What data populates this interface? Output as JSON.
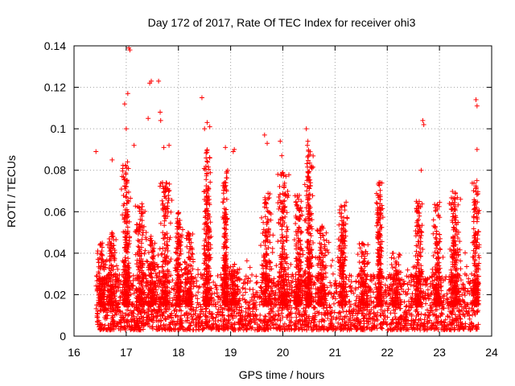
{
  "chart_data": {
    "type": "scatter",
    "title": "Day 172 of 2017, Rate Of TEC Index for receiver ohi3",
    "xlabel": "GPS time / hours",
    "ylabel": "ROTI / TECUs",
    "xlim": [
      16,
      24
    ],
    "ylim": [
      0,
      0.14
    ],
    "x_ticks": [
      16,
      17,
      18,
      19,
      20,
      21,
      22,
      23,
      24
    ],
    "x_tick_labels": [
      "16",
      "17",
      "18",
      "19",
      "20",
      "21",
      "22",
      "23",
      "24"
    ],
    "y_ticks": [
      0,
      0.02,
      0.04,
      0.06,
      0.08,
      0.1,
      0.12,
      0.14
    ],
    "y_tick_labels": [
      "0",
      "0.02",
      "0.04",
      "0.06",
      "0.08",
      "0.1",
      "0.12",
      "0.14"
    ],
    "grid": true,
    "marker": "+",
    "marker_color": "#ff0000",
    "x_data_range": [
      16.42,
      23.75
    ],
    "notable_points": [
      {
        "x": 16.42,
        "y": 0.089
      },
      {
        "x": 16.73,
        "y": 0.085
      },
      {
        "x": 16.97,
        "y": 0.112
      },
      {
        "x": 17.0,
        "y": 0.1
      },
      {
        "x": 17.03,
        "y": 0.117
      },
      {
        "x": 17.05,
        "y": 0.139
      },
      {
        "x": 17.07,
        "y": 0.138
      },
      {
        "x": 17.15,
        "y": 0.092
      },
      {
        "x": 17.42,
        "y": 0.105
      },
      {
        "x": 17.45,
        "y": 0.122
      },
      {
        "x": 17.48,
        "y": 0.123
      },
      {
        "x": 17.62,
        "y": 0.123
      },
      {
        "x": 17.65,
        "y": 0.108
      },
      {
        "x": 17.66,
        "y": 0.104
      },
      {
        "x": 17.72,
        "y": 0.091
      },
      {
        "x": 17.82,
        "y": 0.092
      },
      {
        "x": 18.45,
        "y": 0.115
      },
      {
        "x": 18.5,
        "y": 0.1
      },
      {
        "x": 18.55,
        "y": 0.103
      },
      {
        "x": 18.6,
        "y": 0.101
      },
      {
        "x": 18.9,
        "y": 0.091
      },
      {
        "x": 19.05,
        "y": 0.089
      },
      {
        "x": 19.07,
        "y": 0.09
      },
      {
        "x": 19.65,
        "y": 0.097
      },
      {
        "x": 19.7,
        "y": 0.093
      },
      {
        "x": 19.95,
        "y": 0.094
      },
      {
        "x": 19.98,
        "y": 0.087
      },
      {
        "x": 20.45,
        "y": 0.1
      },
      {
        "x": 20.48,
        "y": 0.094
      },
      {
        "x": 20.47,
        "y": 0.092
      },
      {
        "x": 22.68,
        "y": 0.104
      },
      {
        "x": 22.7,
        "y": 0.102
      },
      {
        "x": 22.65,
        "y": 0.08
      },
      {
        "x": 23.7,
        "y": 0.114
      },
      {
        "x": 23.72,
        "y": 0.111
      },
      {
        "x": 23.72,
        "y": 0.09
      }
    ],
    "bursts": [
      {
        "x": 16.52,
        "height": 0.045,
        "width": 0.07
      },
      {
        "x": 16.72,
        "height": 0.05,
        "width": 0.1
      },
      {
        "x": 17.0,
        "height": 0.085,
        "width": 0.07
      },
      {
        "x": 17.28,
        "height": 0.065,
        "width": 0.1
      },
      {
        "x": 17.5,
        "height": 0.05,
        "width": 0.1
      },
      {
        "x": 17.75,
        "height": 0.075,
        "width": 0.1
      },
      {
        "x": 18.0,
        "height": 0.06,
        "width": 0.06
      },
      {
        "x": 18.2,
        "height": 0.05,
        "width": 0.08
      },
      {
        "x": 18.55,
        "height": 0.09,
        "width": 0.07
      },
      {
        "x": 18.9,
        "height": 0.08,
        "width": 0.05
      },
      {
        "x": 19.05,
        "height": 0.035,
        "width": 0.1
      },
      {
        "x": 19.7,
        "height": 0.07,
        "width": 0.1
      },
      {
        "x": 20.0,
        "height": 0.08,
        "width": 0.1
      },
      {
        "x": 20.3,
        "height": 0.07,
        "width": 0.08
      },
      {
        "x": 20.5,
        "height": 0.09,
        "width": 0.07
      },
      {
        "x": 20.75,
        "height": 0.055,
        "width": 0.1
      },
      {
        "x": 21.15,
        "height": 0.065,
        "width": 0.08
      },
      {
        "x": 21.55,
        "height": 0.045,
        "width": 0.1
      },
      {
        "x": 21.85,
        "height": 0.075,
        "width": 0.05
      },
      {
        "x": 22.15,
        "height": 0.04,
        "width": 0.1
      },
      {
        "x": 22.6,
        "height": 0.065,
        "width": 0.08
      },
      {
        "x": 22.95,
        "height": 0.065,
        "width": 0.07
      },
      {
        "x": 23.3,
        "height": 0.07,
        "width": 0.09
      },
      {
        "x": 23.7,
        "height": 0.075,
        "width": 0.06
      }
    ],
    "baseline_min": 0.003,
    "baseline_max": 0.03
  }
}
